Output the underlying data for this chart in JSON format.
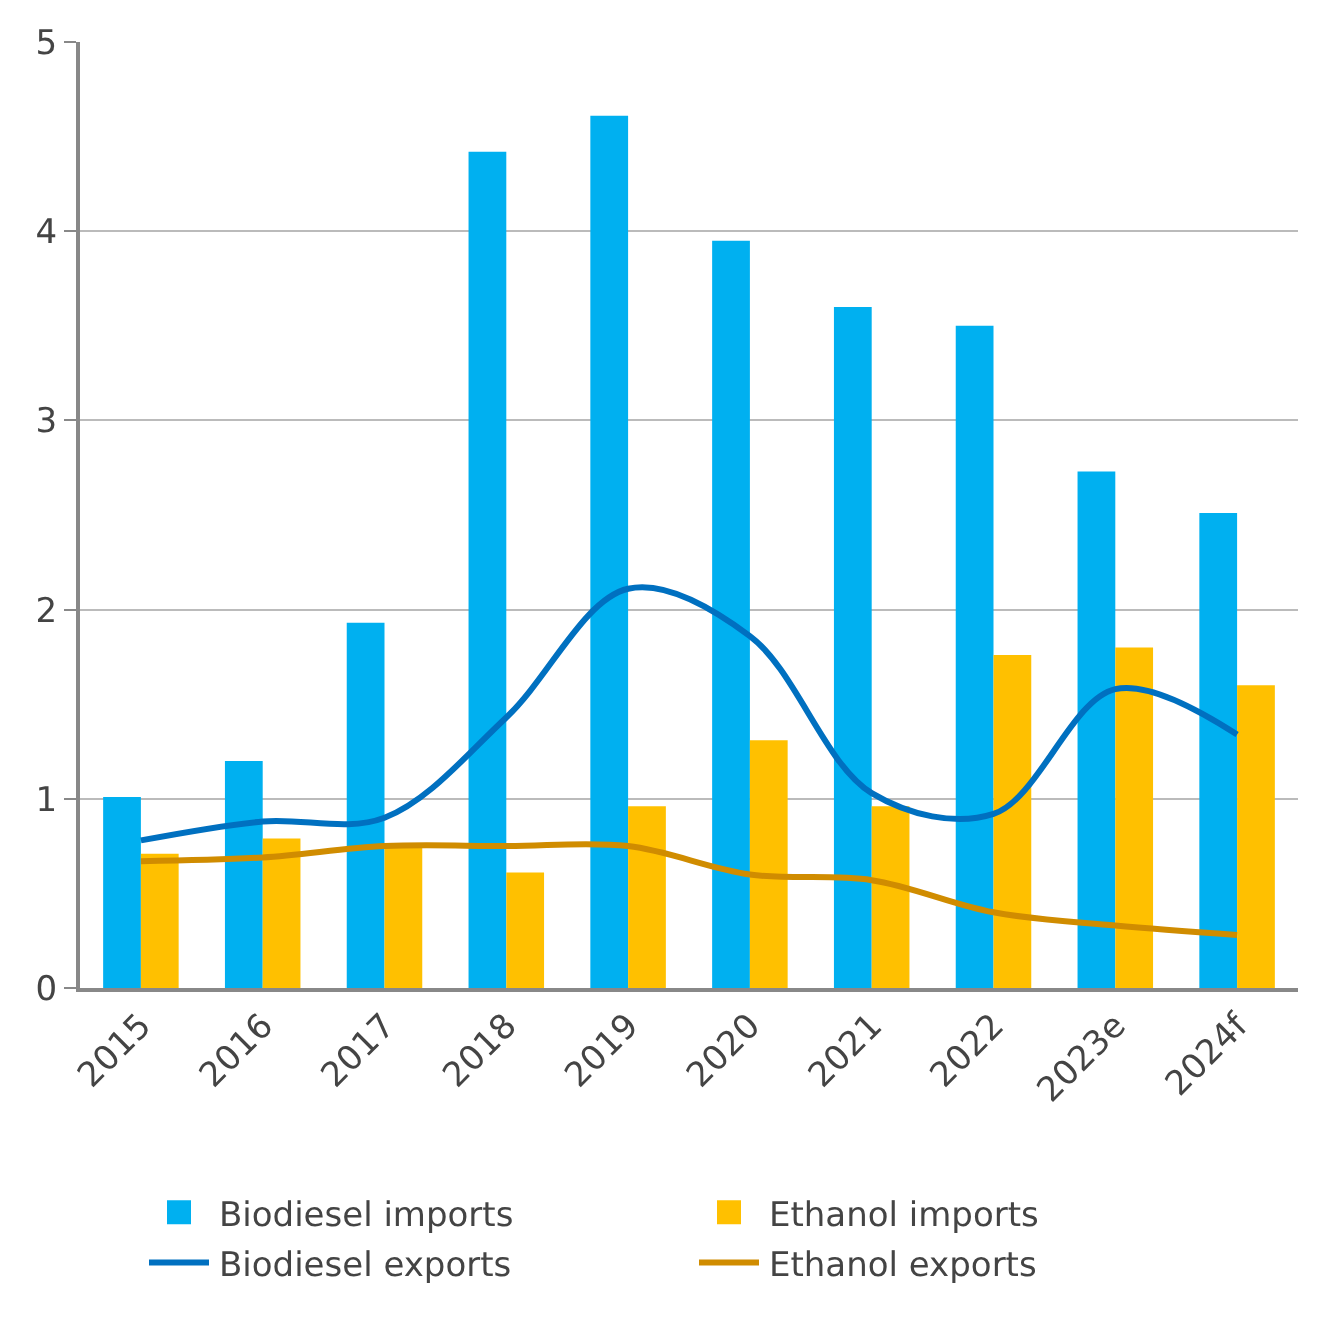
{
  "chart_data": {
    "type": "bar",
    "categories": [
      "2015",
      "2016",
      "2017",
      "2018",
      "2019",
      "2020",
      "2021",
      "2022",
      "2023e",
      "2024f"
    ],
    "series": [
      {
        "name": "Biodiesel imports",
        "color": "#00b0f0",
        "values": [
          1.01,
          1.2,
          1.93,
          4.42,
          4.61,
          3.95,
          3.6,
          3.5,
          2.73,
          2.51
        ]
      },
      {
        "name": "Ethanol imports",
        "color": "#ffc000",
        "values": [
          0.71,
          0.79,
          0.75,
          0.61,
          0.96,
          1.31,
          0.96,
          1.76,
          1.8,
          1.6
        ]
      },
      {
        "name": "Biodiesel exports",
        "type": "line",
        "color": "#0070c0",
        "values": [
          0.78,
          0.88,
          0.9,
          1.43,
          2.11,
          1.86,
          1.03,
          0.92,
          1.58,
          1.34
        ]
      },
      {
        "name": "Ethanol exports",
        "type": "line",
        "color": "#d08c00",
        "values": [
          0.67,
          0.69,
          0.75,
          0.75,
          0.75,
          0.6,
          0.57,
          0.4,
          0.33,
          0.28
        ]
      }
    ],
    "ylim": [
      0,
      5
    ],
    "yticks": [
      0,
      1,
      2,
      3,
      4,
      5
    ],
    "grid": "y",
    "legend": "bottom",
    "marker": "none",
    "line_style": "solid"
  }
}
